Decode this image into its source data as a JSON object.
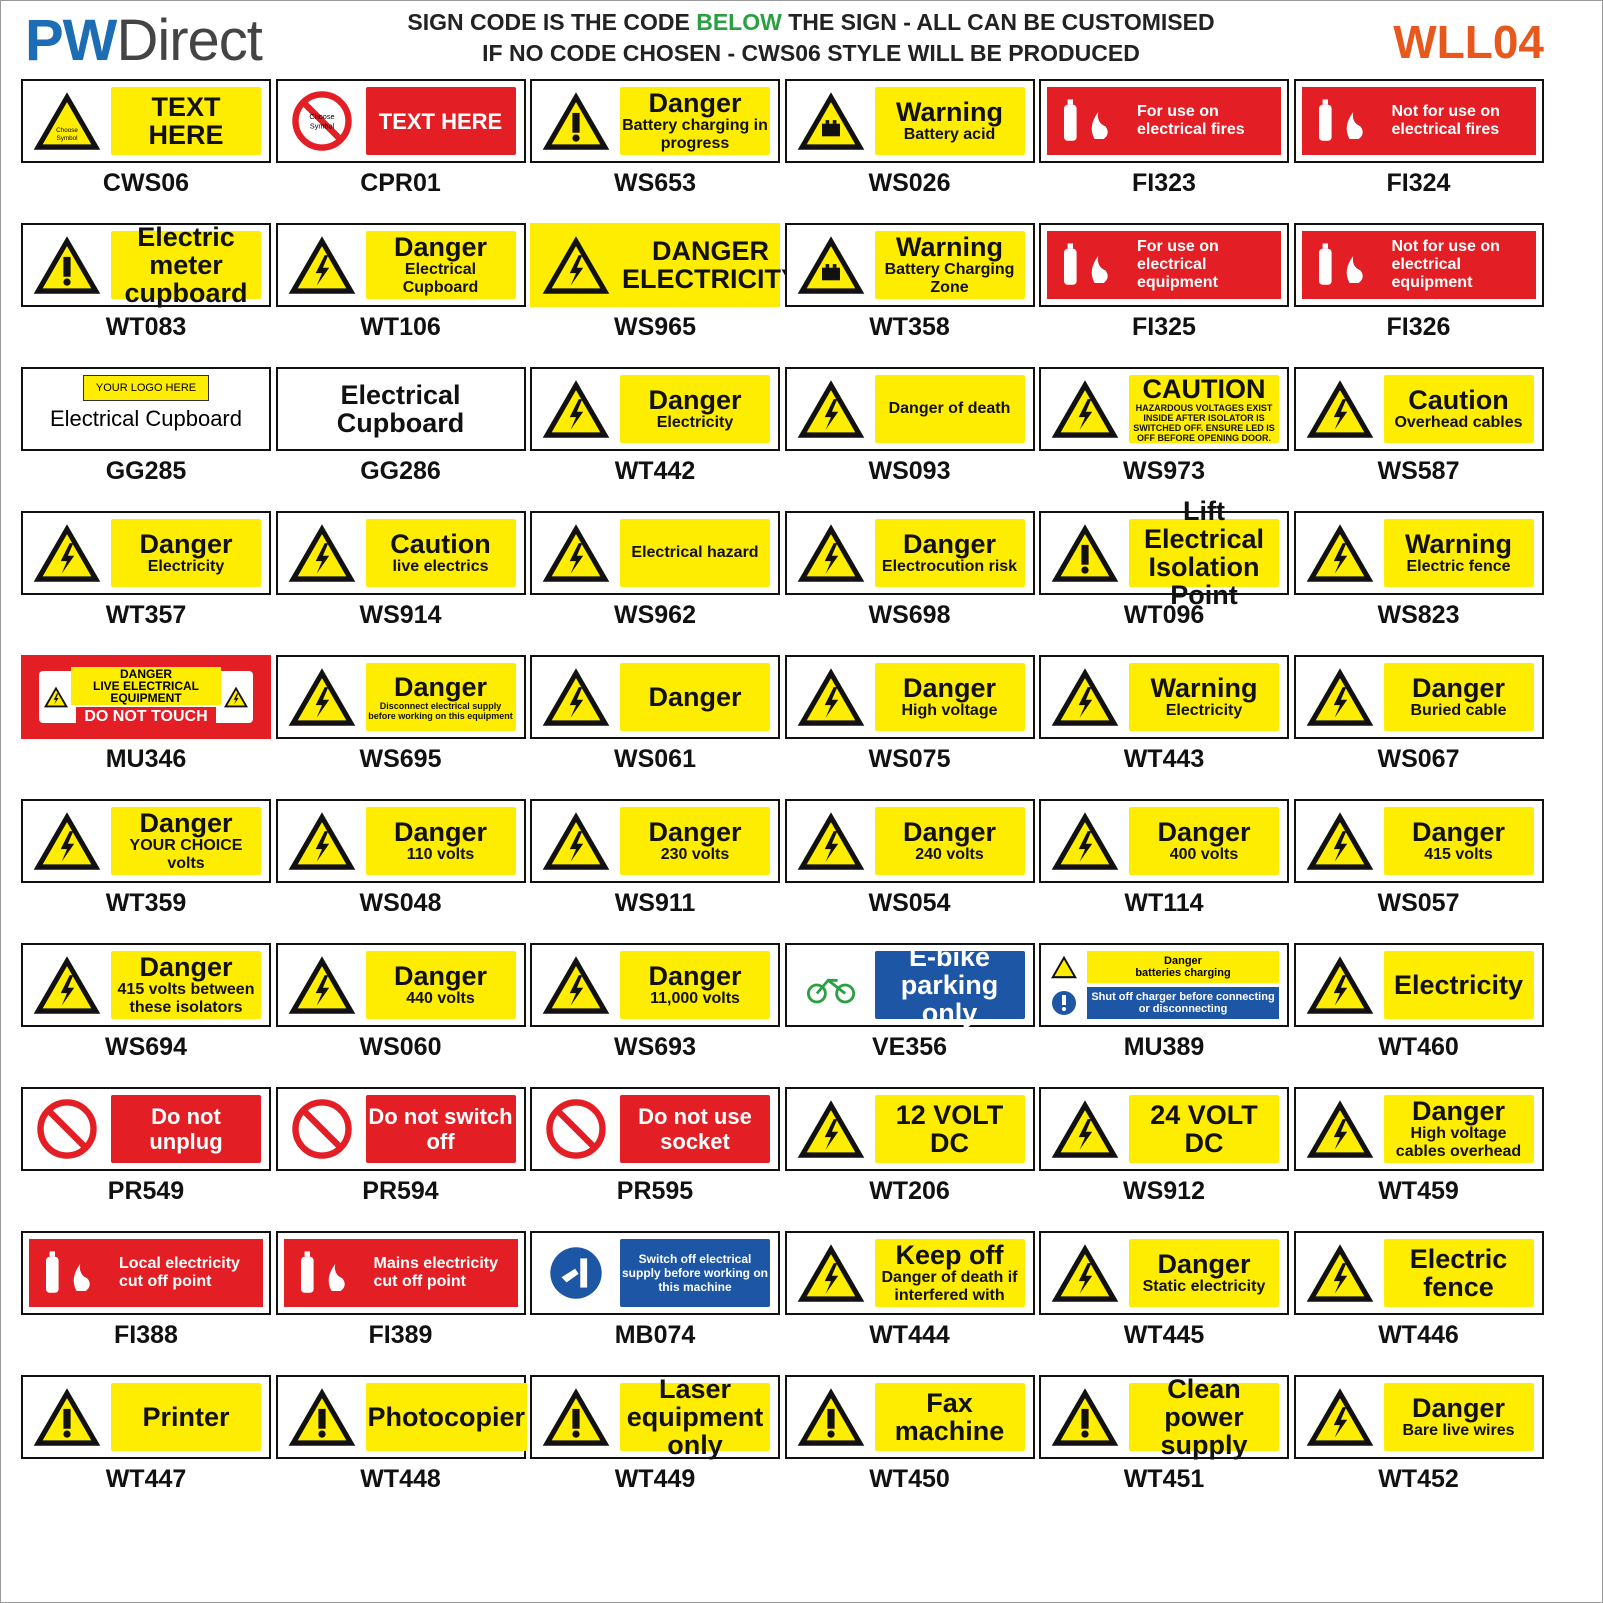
{
  "header": {
    "logo_pw": "PW",
    "logo_direct": "Direct",
    "line1_a": "SIGN CODE IS THE CODE ",
    "line1_b": "BELOW",
    "line1_c": " THE SIGN - ALL CAN BE CUSTOMISED",
    "line2": "IF NO CODE CHOSEN - CWS06 STYLE WILL BE PRODUCED",
    "product_code": "WLL04"
  },
  "colors": {
    "yellow": "#ffed00",
    "red": "#e31e24",
    "blue": "#1d56a5",
    "brand_blue": "#1d6db5",
    "orange": "#e8581c",
    "green": "#2aa043"
  },
  "signs": [
    {
      "code": "CWS06",
      "kind": "warn",
      "symbol": "Choose Symbol",
      "title": "TEXT HERE",
      "sub": ""
    },
    {
      "code": "CPR01",
      "kind": "prohib",
      "symbol": "Choose Symbol",
      "title": "TEXT HERE",
      "sub": ""
    },
    {
      "code": "WS653",
      "kind": "warn",
      "symbol": "exclamation",
      "title": "Danger",
      "sub": "Battery charging in progress"
    },
    {
      "code": "WS026",
      "kind": "warn",
      "symbol": "battery-acid",
      "title": "Warning",
      "sub": "Battery acid"
    },
    {
      "code": "FI323",
      "kind": "fire",
      "symbol": "extinguisher",
      "title": "For use on electrical fires",
      "sub": ""
    },
    {
      "code": "FI324",
      "kind": "fire",
      "symbol": "extinguisher",
      "title": "Not for use on electrical fires",
      "sub": ""
    },
    {
      "code": "WT083",
      "kind": "warn",
      "symbol": "exclamation",
      "title": "",
      "sub": "Electric meter cupboard"
    },
    {
      "code": "WT106",
      "kind": "warn",
      "symbol": "bolt",
      "title": "Danger",
      "sub": "Electrical Cupboard"
    },
    {
      "code": "WS965",
      "kind": "yfull",
      "symbol": "bolt",
      "title": "",
      "sub": "DANGER ELECTRICITY"
    },
    {
      "code": "WT358",
      "kind": "warn",
      "symbol": "battery",
      "title": "Warning",
      "sub": "Battery Charging Zone"
    },
    {
      "code": "FI325",
      "kind": "fire",
      "symbol": "extinguisher",
      "title": "For use on electrical equipment",
      "sub": ""
    },
    {
      "code": "FI326",
      "kind": "fire",
      "symbol": "extinguisher",
      "title": "Not for use on electrical equipment",
      "sub": ""
    },
    {
      "code": "GG285",
      "kind": "logo",
      "symbol": "",
      "title": "Electrical Cupboard",
      "sub": "YOUR LOGO HERE"
    },
    {
      "code": "GG286",
      "kind": "plain",
      "symbol": "",
      "title": "Electrical Cupboard",
      "sub": ""
    },
    {
      "code": "WT442",
      "kind": "warn",
      "symbol": "bolt",
      "title": "Danger",
      "sub": "Electricity"
    },
    {
      "code": "WS093",
      "kind": "warn",
      "symbol": "electrocution",
      "title": "Danger of death",
      "sub": ""
    },
    {
      "code": "WS973",
      "kind": "warn",
      "symbol": "bolt",
      "title": "CAUTION",
      "sub": "HAZARDOUS VOLTAGES EXIST INSIDE AFTER ISOLATOR IS SWITCHED OFF. ENSURE LED IS OFF BEFORE OPENING DOOR."
    },
    {
      "code": "WS587",
      "kind": "warn",
      "symbol": "bolt",
      "title": "Caution",
      "sub": "Overhead cables"
    },
    {
      "code": "WT357",
      "kind": "warn",
      "symbol": "bolt",
      "title": "Danger",
      "sub": "Electricity"
    },
    {
      "code": "WS914",
      "kind": "warn",
      "symbol": "bolt",
      "title": "Caution",
      "sub": "live electrics"
    },
    {
      "code": "WS962",
      "kind": "warn",
      "symbol": "bolt",
      "title": "Electrical hazard",
      "sub": ""
    },
    {
      "code": "WS698",
      "kind": "warn",
      "symbol": "electrocution",
      "title": "Danger",
      "sub": "Electrocution risk"
    },
    {
      "code": "WT096",
      "kind": "warn",
      "symbol": "exclamation",
      "title": "",
      "sub": "Lift Electrical Isolation Point"
    },
    {
      "code": "WS823",
      "kind": "warn",
      "symbol": "bolt",
      "title": "Warning",
      "sub": "Electric fence"
    },
    {
      "code": "MU346",
      "kind": "redframe",
      "symbol": "bolt",
      "title": "DANGER",
      "sub": "LIVE ELECTRICAL EQUIPMENT",
      "extra": "DO NOT TOUCH"
    },
    {
      "code": "WS695",
      "kind": "warn",
      "symbol": "bolt",
      "title": "Danger",
      "sub": "Disconnect electrical supply before working on this equipment"
    },
    {
      "code": "WS061",
      "kind": "warn",
      "symbol": "bolt",
      "title": "Danger",
      "sub": ""
    },
    {
      "code": "WS075",
      "kind": "warn",
      "symbol": "bolt",
      "title": "Danger",
      "sub": "High voltage"
    },
    {
      "code": "WT443",
      "kind": "warn",
      "symbol": "bolt",
      "title": "Warning",
      "sub": "Electricity"
    },
    {
      "code": "WS067",
      "kind": "warn",
      "symbol": "bolt",
      "title": "Danger",
      "sub": "Buried cable"
    },
    {
      "code": "WT359",
      "kind": "warn",
      "symbol": "bolt",
      "title": "Danger",
      "sub": "YOUR CHOICE volts"
    },
    {
      "code": "WS048",
      "kind": "warn",
      "symbol": "bolt",
      "title": "Danger",
      "sub": "110 volts"
    },
    {
      "code": "WS911",
      "kind": "warn",
      "symbol": "bolt",
      "title": "Danger",
      "sub": "230 volts"
    },
    {
      "code": "WS054",
      "kind": "warn",
      "symbol": "bolt",
      "title": "Danger",
      "sub": "240 volts"
    },
    {
      "code": "WT114",
      "kind": "warn",
      "symbol": "bolt",
      "title": "Danger",
      "sub": "400 volts"
    },
    {
      "code": "WS057",
      "kind": "warn",
      "symbol": "bolt",
      "title": "Danger",
      "sub": "415 volts"
    },
    {
      "code": "WS694",
      "kind": "warn",
      "symbol": "bolt",
      "title": "Danger",
      "sub": "415 volts between these isolators"
    },
    {
      "code": "WS060",
      "kind": "warn",
      "symbol": "bolt",
      "title": "Danger",
      "sub": "440 volts"
    },
    {
      "code": "WS693",
      "kind": "warn",
      "symbol": "bolt",
      "title": "Danger",
      "sub": "11,000 volts"
    },
    {
      "code": "VE356",
      "kind": "blue",
      "symbol": "bicycle",
      "title": "E-bike parking only",
      "sub": ""
    },
    {
      "code": "MU389",
      "kind": "multi",
      "symbol": "battery",
      "title": "Danger",
      "sub": "batteries charging",
      "extra": "Shut off charger before connecting or disconnecting"
    },
    {
      "code": "WT460",
      "kind": "warn",
      "symbol": "bolt",
      "title": "Electricity",
      "sub": ""
    },
    {
      "code": "PR549",
      "kind": "prohib",
      "symbol": "no-entry",
      "title": "Do not unplug",
      "sub": ""
    },
    {
      "code": "PR594",
      "kind": "prohib",
      "symbol": "no-entry",
      "title": "Do not switch off",
      "sub": ""
    },
    {
      "code": "PR595",
      "kind": "prohib",
      "symbol": "no-entry",
      "title": "Do not use socket",
      "sub": ""
    },
    {
      "code": "WT206",
      "kind": "warn",
      "symbol": "bolt",
      "title": "12 VOLT DC",
      "sub": ""
    },
    {
      "code": "WS912",
      "kind": "warn",
      "symbol": "bolt",
      "title": "24 VOLT DC",
      "sub": ""
    },
    {
      "code": "WT459",
      "kind": "warn",
      "symbol": "bolt",
      "title": "Danger",
      "sub": "High voltage cables overhead"
    },
    {
      "code": "FI388",
      "kind": "fire",
      "symbol": "call-point",
      "title": "Local electricity cut off point",
      "sub": ""
    },
    {
      "code": "FI389",
      "kind": "fire",
      "symbol": "call-point",
      "title": "Mains electricity cut off point",
      "sub": ""
    },
    {
      "code": "MB074",
      "kind": "mand",
      "symbol": "switch-off",
      "title": "Switch off electrical supply before working on this machine",
      "sub": ""
    },
    {
      "code": "WT444",
      "kind": "warn",
      "symbol": "bolt",
      "title": "Keep off",
      "sub": "Danger of death if interfered with"
    },
    {
      "code": "WT445",
      "kind": "warn",
      "symbol": "bolt",
      "title": "Danger",
      "sub": "Static electricity"
    },
    {
      "code": "WT446",
      "kind": "warn",
      "symbol": "bolt",
      "title": "Electric fence",
      "sub": ""
    },
    {
      "code": "WT447",
      "kind": "warn",
      "symbol": "exclamation",
      "title": "Printer",
      "sub": ""
    },
    {
      "code": "WT448",
      "kind": "warn",
      "symbol": "exclamation",
      "title": "",
      "sub": "Photocopier"
    },
    {
      "code": "WT449",
      "kind": "warn",
      "symbol": "exclamation",
      "title": "",
      "sub": "Laser equipment only"
    },
    {
      "code": "WT450",
      "kind": "warn",
      "symbol": "exclamation",
      "title": "",
      "sub": "Fax machine"
    },
    {
      "code": "WT451",
      "kind": "warn",
      "symbol": "exclamation",
      "title": "",
      "sub": "Clean power supply"
    },
    {
      "code": "WT452",
      "kind": "warn",
      "symbol": "bolt",
      "title": "Danger",
      "sub": "Bare live wires"
    }
  ]
}
